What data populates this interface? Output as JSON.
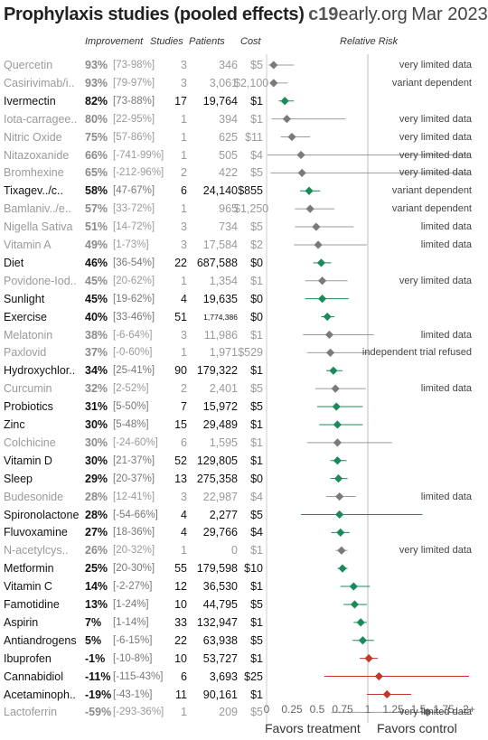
{
  "title": {
    "main": "Prophylaxis studies (pooled effects)",
    "brand_c19": "c19",
    "brand_rest": "early.org",
    "date": "Mar 2023"
  },
  "headers": {
    "improvement": "Improvement",
    "studies": "Studies",
    "patients": "Patients",
    "cost": "Cost",
    "relative_risk": "Relative Risk"
  },
  "footer": {
    "left": "Favors treatment",
    "right": "Favors control"
  },
  "colors": {
    "green": "#1a8a5a",
    "grey": "#7a7a7a",
    "red": "#c0392b"
  },
  "chart_data": {
    "type": "forest",
    "xlim": [
      0,
      2
    ],
    "x_ticks": [
      "0",
      "0.25",
      "0.5",
      "0.75",
      "1",
      "1.25",
      "1.5",
      "1.75",
      "2+"
    ],
    "reference_line": 1,
    "rows": [
      {
        "name": "Quercetin",
        "imp": "93%",
        "ci": "[73-98%]",
        "studies": "3",
        "patients": "346",
        "cost": "$5",
        "rr": 0.07,
        "lo": 0.02,
        "hi": 0.27,
        "style": "grey",
        "note": "very limited data"
      },
      {
        "name": "Casirivimab/i..",
        "imp": "93%",
        "ci": "[79-97%]",
        "studies": "3",
        "patients": "3,061",
        "cost": "$2,100",
        "rr": 0.07,
        "lo": 0.03,
        "hi": 0.21,
        "style": "grey",
        "note": "variant dependent"
      },
      {
        "name": "Ivermectin",
        "imp": "82%",
        "ci": "[73-88%]",
        "studies": "17",
        "patients": "19,764",
        "cost": "$1",
        "rr": 0.18,
        "lo": 0.12,
        "hi": 0.27,
        "style": "green",
        "note": ""
      },
      {
        "name": "Iota-carragee..",
        "imp": "80%",
        "ci": "[22-95%]",
        "studies": "1",
        "patients": "394",
        "cost": "$1",
        "rr": 0.2,
        "lo": 0.05,
        "hi": 0.78,
        "style": "grey",
        "note": "very limited data"
      },
      {
        "name": "Nitric Oxide",
        "imp": "75%",
        "ci": "[57-86%]",
        "studies": "1",
        "patients": "625",
        "cost": "$11",
        "rr": 0.25,
        "lo": 0.14,
        "hi": 0.43,
        "style": "grey",
        "note": "very limited data"
      },
      {
        "name": "Nitazoxanide",
        "imp": "66%",
        "ci": "[-741-99%]",
        "studies": "1",
        "patients": "505",
        "cost": "$4",
        "rr": 0.34,
        "lo": 0.01,
        "hi": 2.0,
        "style": "grey",
        "note": "very limited data"
      },
      {
        "name": "Bromhexine",
        "imp": "65%",
        "ci": "[-212-96%]",
        "studies": "2",
        "patients": "422",
        "cost": "$5",
        "rr": 0.35,
        "lo": 0.04,
        "hi": 2.0,
        "style": "grey",
        "note": "very limited data"
      },
      {
        "name": "Tixagev../c..",
        "imp": "58%",
        "ci": "[47-67%]",
        "studies": "6",
        "patients": "24,140",
        "cost": "$855",
        "rr": 0.42,
        "lo": 0.33,
        "hi": 0.53,
        "style": "green",
        "note": "variant dependent"
      },
      {
        "name": "Bamlaniv../e..",
        "imp": "57%",
        "ci": "[33-72%]",
        "studies": "1",
        "patients": "965",
        "cost": "$1,250",
        "rr": 0.43,
        "lo": 0.28,
        "hi": 0.67,
        "style": "grey",
        "note": "variant dependent"
      },
      {
        "name": "Nigella Sativa",
        "imp": "51%",
        "ci": "[14-72%]",
        "studies": "3",
        "patients": "734",
        "cost": "$5",
        "rr": 0.49,
        "lo": 0.28,
        "hi": 0.86,
        "style": "grey",
        "note": "limited data"
      },
      {
        "name": "Vitamin A",
        "imp": "49%",
        "ci": "[1-73%]",
        "studies": "3",
        "patients": "17,584",
        "cost": "$2",
        "rr": 0.51,
        "lo": 0.27,
        "hi": 0.99,
        "style": "grey",
        "note": "limited data"
      },
      {
        "name": "Diet",
        "imp": "46%",
        "ci": "[36-54%]",
        "studies": "22",
        "patients": "687,588",
        "cost": "$0",
        "rr": 0.54,
        "lo": 0.46,
        "hi": 0.64,
        "style": "green",
        "note": ""
      },
      {
        "name": "Povidone-Iod..",
        "imp": "45%",
        "ci": "[20-62%]",
        "studies": "1",
        "patients": "1,354",
        "cost": "$1",
        "rr": 0.55,
        "lo": 0.38,
        "hi": 0.8,
        "style": "grey",
        "note": "very limited data"
      },
      {
        "name": "Sunlight",
        "imp": "45%",
        "ci": "[19-62%]",
        "studies": "4",
        "patients": "19,635",
        "cost": "$0",
        "rr": 0.55,
        "lo": 0.38,
        "hi": 0.81,
        "style": "green",
        "note": ""
      },
      {
        "name": "Exercise",
        "imp": "40%",
        "ci": "[33-46%]",
        "studies": "51",
        "patients": "1,774,386",
        "cost": "$0",
        "rr": 0.6,
        "lo": 0.54,
        "hi": 0.67,
        "style": "green",
        "note": ""
      },
      {
        "name": "Melatonin",
        "imp": "38%",
        "ci": "[-6-64%]",
        "studies": "3",
        "patients": "11,986",
        "cost": "$1",
        "rr": 0.62,
        "lo": 0.36,
        "hi": 1.06,
        "style": "grey",
        "note": "limited data"
      },
      {
        "name": "Paxlovid",
        "imp": "37%",
        "ci": "[-0-60%]",
        "studies": "1",
        "patients": "1,971",
        "cost": "$529",
        "rr": 0.63,
        "lo": 0.4,
        "hi": 1.0,
        "style": "grey",
        "note": "independent trial refused"
      },
      {
        "name": "Hydroxychlor..",
        "imp": "34%",
        "ci": "[25-41%]",
        "studies": "90",
        "patients": "179,322",
        "cost": "$1",
        "rr": 0.66,
        "lo": 0.59,
        "hi": 0.75,
        "style": "green",
        "note": ""
      },
      {
        "name": "Curcumin",
        "imp": "32%",
        "ci": "[2-52%]",
        "studies": "2",
        "patients": "2,401",
        "cost": "$5",
        "rr": 0.68,
        "lo": 0.48,
        "hi": 0.98,
        "style": "grey",
        "note": "limited data"
      },
      {
        "name": "Probiotics",
        "imp": "31%",
        "ci": "[5-50%]",
        "studies": "7",
        "patients": "15,972",
        "cost": "$5",
        "rr": 0.69,
        "lo": 0.5,
        "hi": 0.95,
        "style": "green",
        "note": ""
      },
      {
        "name": "Zinc",
        "imp": "30%",
        "ci": "[5-48%]",
        "studies": "15",
        "patients": "29,489",
        "cost": "$1",
        "rr": 0.7,
        "lo": 0.52,
        "hi": 0.95,
        "style": "green",
        "note": ""
      },
      {
        "name": "Colchicine",
        "imp": "30%",
        "ci": "[-24-60%]",
        "studies": "6",
        "patients": "1,595",
        "cost": "$1",
        "rr": 0.7,
        "lo": 0.4,
        "hi": 1.24,
        "style": "grey",
        "note": ""
      },
      {
        "name": "Vitamin D",
        "imp": "30%",
        "ci": "[21-37%]",
        "studies": "52",
        "patients": "129,805",
        "cost": "$1",
        "rr": 0.7,
        "lo": 0.63,
        "hi": 0.79,
        "style": "green",
        "note": ""
      },
      {
        "name": "Sleep",
        "imp": "29%",
        "ci": "[20-37%]",
        "studies": "13",
        "patients": "275,358",
        "cost": "$0",
        "rr": 0.71,
        "lo": 0.63,
        "hi": 0.8,
        "style": "green",
        "note": ""
      },
      {
        "name": "Budesonide",
        "imp": "28%",
        "ci": "[12-41%]",
        "studies": "3",
        "patients": "22,987",
        "cost": "$4",
        "rr": 0.72,
        "lo": 0.59,
        "hi": 0.88,
        "style": "grey",
        "note": "limited data"
      },
      {
        "name": "Spironolactone",
        "imp": "28%",
        "ci": "[-54-66%]",
        "studies": "4",
        "patients": "2,277",
        "cost": "$5",
        "rr": 0.72,
        "lo": 0.34,
        "hi": 1.54,
        "style": "green",
        "note": ""
      },
      {
        "name": "Fluvoxamine",
        "imp": "27%",
        "ci": "[18-36%]",
        "studies": "4",
        "patients": "29,766",
        "cost": "$4",
        "rr": 0.73,
        "lo": 0.64,
        "hi": 0.82,
        "style": "green",
        "note": ""
      },
      {
        "name": "N-acetylcys..",
        "imp": "26%",
        "ci": "[20-32%]",
        "studies": "1",
        "patients": "0",
        "cost": "$1",
        "rr": 0.74,
        "lo": 0.68,
        "hi": 0.8,
        "style": "grey",
        "note": "very limited data"
      },
      {
        "name": "Metformin",
        "imp": "25%",
        "ci": "[20-30%]",
        "studies": "55",
        "patients": "179,598",
        "cost": "$10",
        "rr": 0.75,
        "lo": 0.7,
        "hi": 0.8,
        "style": "green",
        "note": ""
      },
      {
        "name": "Vitamin C",
        "imp": "14%",
        "ci": "[-2-27%]",
        "studies": "12",
        "patients": "36,530",
        "cost": "$1",
        "rr": 0.86,
        "lo": 0.73,
        "hi": 1.02,
        "style": "green",
        "note": ""
      },
      {
        "name": "Famotidine",
        "imp": "13%",
        "ci": "[1-24%]",
        "studies": "10",
        "patients": "44,795",
        "cost": "$5",
        "rr": 0.87,
        "lo": 0.76,
        "hi": 0.99,
        "style": "green",
        "note": ""
      },
      {
        "name": "Aspirin",
        "imp": "7%",
        "ci": "[1-14%]",
        "studies": "33",
        "patients": "132,947",
        "cost": "$1",
        "rr": 0.93,
        "lo": 0.86,
        "hi": 0.99,
        "style": "green",
        "note": ""
      },
      {
        "name": "Antiandrogens",
        "imp": "5%",
        "ci": "[-6-15%]",
        "studies": "22",
        "patients": "63,938",
        "cost": "$5",
        "rr": 0.95,
        "lo": 0.85,
        "hi": 1.06,
        "style": "green",
        "note": ""
      },
      {
        "name": "Ibuprofen",
        "imp": "-1%",
        "ci": "[-10-8%]",
        "studies": "10",
        "patients": "53,727",
        "cost": "$1",
        "rr": 1.01,
        "lo": 0.92,
        "hi": 1.1,
        "style": "red",
        "note": ""
      },
      {
        "name": "Cannabidiol",
        "imp": "-11%",
        "ci": "[-115-43%]",
        "studies": "6",
        "patients": "3,693",
        "cost": "$25",
        "rr": 1.11,
        "lo": 0.57,
        "hi": 2.15,
        "style": "red",
        "note": ""
      },
      {
        "name": "Acetaminoph..",
        "imp": "-19%",
        "ci": "[-43-1%]",
        "studies": "11",
        "patients": "90,161",
        "cost": "$1",
        "rr": 1.19,
        "lo": 0.99,
        "hi": 1.43,
        "style": "red",
        "note": ""
      },
      {
        "name": "Lactoferrin",
        "imp": "-59%",
        "ci": "[-293-36%]",
        "studies": "1",
        "patients": "209",
        "cost": "$5",
        "rr": 1.59,
        "lo": 0.64,
        "hi": 3.93,
        "style": "grey",
        "note": "very limited data"
      }
    ]
  }
}
